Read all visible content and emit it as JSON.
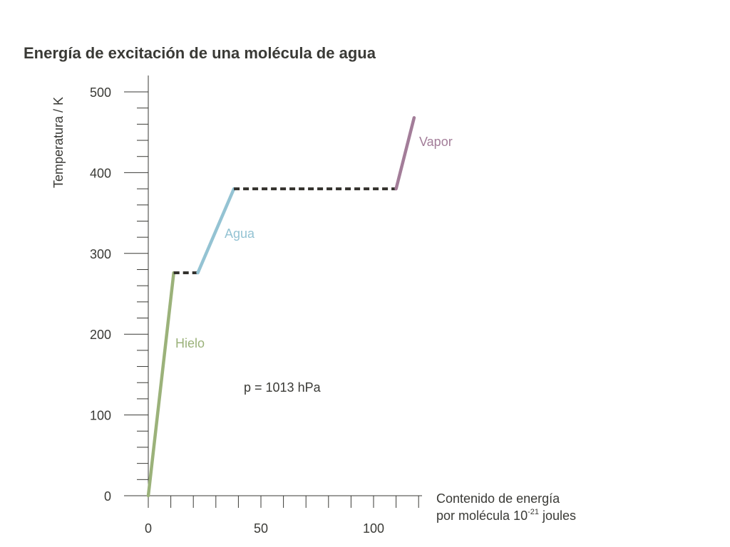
{
  "chart_data": {
    "type": "line",
    "title": "Energía de excitación de una molécula de agua",
    "ylabel": "Temperatura / K",
    "xlabel": {
      "line1": "Contenido de energía",
      "line2_prefix": "por molécula 10",
      "line2_sup": "-21",
      "line2_suffix": " joules"
    },
    "xlim": [
      0,
      120
    ],
    "ylim": [
      0,
      500
    ],
    "x_ticks": [
      0,
      50,
      100
    ],
    "x_tick_labels": [
      "0",
      "50",
      "100"
    ],
    "x_minor_step": 10,
    "y_ticks": [
      0,
      100,
      200,
      300,
      400,
      500
    ],
    "y_tick_labels": [
      "0",
      "100",
      "200",
      "300",
      "400",
      "500"
    ],
    "y_minor_step": 20,
    "grid": false,
    "annotation": "p = 1013 hPa",
    "series": [
      {
        "name": "Hielo",
        "color": "#9bb27a",
        "style": "solid",
        "x": [
          0,
          11.3
        ],
        "y": [
          0,
          276
        ]
      },
      {
        "style": "dashed",
        "color": "#33312d",
        "x": [
          11.3,
          22
        ],
        "y": [
          276,
          276
        ]
      },
      {
        "name": "Agua",
        "color": "#94c3d3",
        "style": "solid",
        "x": [
          22,
          38
        ],
        "y": [
          276,
          380
        ]
      },
      {
        "style": "dashed",
        "color": "#33312d",
        "x": [
          38,
          110
        ],
        "y": [
          380,
          380
        ]
      },
      {
        "name": "Vapor",
        "color": "#a37d99",
        "style": "solid",
        "x": [
          110,
          118
        ],
        "y": [
          380,
          468
        ]
      }
    ]
  }
}
